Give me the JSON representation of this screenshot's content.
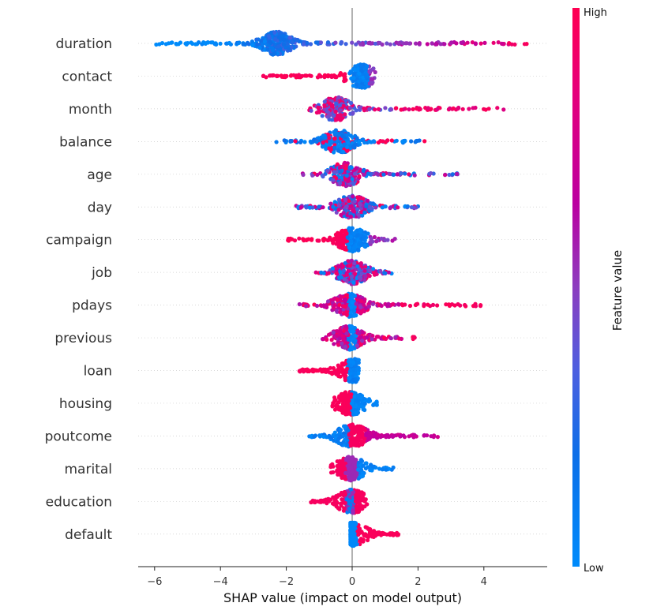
{
  "chart_data": {
    "type": "scatter",
    "subtype": "shap-beeswarm",
    "xlabel": "SHAP value (impact on model output)",
    "xlim": [
      -6.3,
      6.0
    ],
    "xticks": [
      -6,
      -4,
      -2,
      0,
      2,
      4
    ],
    "xtick_labels": [
      "−6",
      "−4",
      "−2",
      "0",
      "2",
      "4"
    ],
    "colorbar": {
      "title": "Feature value",
      "high_label": "High",
      "low_label": "Low",
      "low_color": "#008bfb",
      "high_color": "#ff0052"
    },
    "features": [
      {
        "name": "duration",
        "min": -5.95,
        "max": 5.3,
        "mode": -2.3,
        "pattern": "gradient-up"
      },
      {
        "name": "contact",
        "min": -2.7,
        "max": 0.7,
        "mode": 0.3,
        "pattern": "high-left"
      },
      {
        "name": "month",
        "min": -1.3,
        "max": 4.6,
        "mode": -0.5,
        "pattern": "mixed-high"
      },
      {
        "name": "balance",
        "min": -2.3,
        "max": 2.2,
        "mode": -0.4,
        "pattern": "mixed-low"
      },
      {
        "name": "age",
        "min": -1.5,
        "max": 3.2,
        "mode": -0.2,
        "pattern": "mixed"
      },
      {
        "name": "day",
        "min": -1.7,
        "max": 2.0,
        "mode": 0.0,
        "pattern": "mixed"
      },
      {
        "name": "campaign",
        "min": -1.95,
        "max": 1.3,
        "mode": 0.0,
        "pattern": "high-left"
      },
      {
        "name": "job",
        "min": -1.1,
        "max": 1.2,
        "mode": 0.0,
        "pattern": "mixed"
      },
      {
        "name": "pdays",
        "min": -1.6,
        "max": 3.9,
        "mode": -0.1,
        "pattern": "low-center"
      },
      {
        "name": "previous",
        "min": -0.9,
        "max": 1.9,
        "mode": -0.1,
        "pattern": "low-center"
      },
      {
        "name": "loan",
        "min": -1.6,
        "max": 0.2,
        "mode": 0.05,
        "pattern": "high-left"
      },
      {
        "name": "housing",
        "min": -0.6,
        "max": 0.75,
        "mode": -0.05,
        "pattern": "high-left-low-right"
      },
      {
        "name": "poutcome",
        "min": -1.3,
        "max": 2.6,
        "mode": 0.0,
        "pattern": "poutcome"
      },
      {
        "name": "marital",
        "min": -0.65,
        "max": 1.25,
        "mode": -0.05,
        "pattern": "marital"
      },
      {
        "name": "education",
        "min": -1.25,
        "max": 0.45,
        "mode": 0.0,
        "pattern": "education"
      },
      {
        "name": "default",
        "min": -0.05,
        "max": 1.4,
        "mode": 0.0,
        "pattern": "default"
      }
    ]
  }
}
